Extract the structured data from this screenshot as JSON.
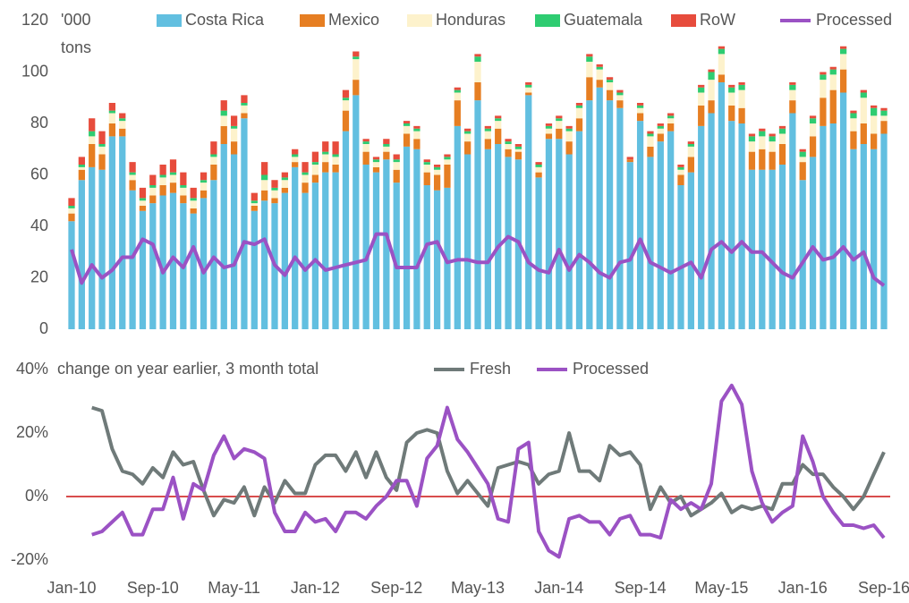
{
  "chart_data": [
    {
      "type": "bar",
      "stacked": true,
      "y_label": [
        "'000",
        "tons"
      ],
      "ylim": [
        0,
        120
      ],
      "yticks": [
        0,
        20,
        40,
        60,
        80,
        100,
        120
      ],
      "series": [
        {
          "name": "Costa Rica",
          "color": "#62bfe0",
          "values": [
            42,
            58,
            63,
            62,
            75,
            75,
            54,
            46,
            49,
            52,
            53,
            49,
            45,
            51,
            58,
            72,
            68,
            82,
            46,
            50,
            49,
            53,
            63,
            53,
            57,
            61,
            61,
            77,
            91,
            64,
            61,
            66,
            57,
            71,
            70,
            56,
            54,
            55,
            79,
            68,
            89,
            70,
            72,
            67,
            66,
            91,
            59,
            74,
            74,
            68,
            77,
            89,
            94,
            89,
            86,
            65,
            81,
            67,
            73,
            77,
            56,
            61,
            79,
            84,
            96,
            81,
            80,
            62,
            62,
            62,
            64,
            84,
            58,
            67,
            79,
            80,
            92,
            70,
            72,
            70,
            76
          ]
        },
        {
          "name": "Mexico",
          "color": "#e67e22",
          "values": [
            3,
            4,
            9,
            6,
            5,
            3,
            4,
            2,
            3,
            4,
            4,
            3,
            2,
            3,
            6,
            7,
            5,
            2,
            2,
            4,
            2,
            2,
            2,
            4,
            3,
            4,
            3,
            8,
            6,
            5,
            2,
            3,
            5,
            5,
            4,
            5,
            6,
            9,
            10,
            5,
            7,
            4,
            6,
            3,
            3,
            1,
            2,
            2,
            4,
            5,
            5,
            9,
            3,
            4,
            3,
            1,
            3,
            4,
            3,
            3,
            4,
            6,
            8,
            5,
            3,
            6,
            6,
            7,
            8,
            7,
            8,
            5,
            7,
            8,
            11,
            13,
            9,
            7,
            8,
            6,
            5
          ]
        },
        {
          "name": "Honduras",
          "color": "#fdf2cc",
          "values": [
            2,
            1,
            3,
            3,
            4,
            3,
            2,
            2,
            3,
            3,
            3,
            3,
            3,
            3,
            3,
            4,
            5,
            3,
            1,
            4,
            3,
            3,
            2,
            3,
            4,
            3,
            3,
            4,
            8,
            3,
            2,
            2,
            3,
            3,
            3,
            3,
            2,
            2,
            3,
            3,
            8,
            3,
            3,
            2,
            1,
            2,
            2,
            2,
            3,
            4,
            4,
            6,
            4,
            3,
            2,
            0,
            2,
            4,
            2,
            2,
            2,
            4,
            5,
            8,
            8,
            5,
            7,
            4,
            5,
            4,
            4,
            4,
            2,
            5,
            7,
            6,
            6,
            5,
            10,
            7,
            2
          ]
        },
        {
          "name": "Guatemala",
          "color": "#2ecc71",
          "values": [
            1,
            1,
            2,
            1,
            1,
            1,
            1,
            1,
            1,
            1,
            1,
            1,
            1,
            1,
            1,
            2,
            1,
            1,
            1,
            2,
            1,
            1,
            1,
            1,
            1,
            1,
            1,
            1,
            1,
            1,
            1,
            1,
            1,
            1,
            1,
            1,
            1,
            1,
            1,
            1,
            2,
            1,
            1,
            1,
            1,
            1,
            1,
            1,
            1,
            1,
            1,
            2,
            1,
            1,
            1,
            0,
            1,
            1,
            1,
            1,
            1,
            1,
            2,
            3,
            2,
            2,
            2,
            2,
            2,
            2,
            2,
            2,
            2,
            2,
            2,
            2,
            2,
            2,
            2,
            3,
            2
          ]
        },
        {
          "name": "RoW",
          "color": "#e74c3c",
          "values": [
            3,
            3,
            5,
            5,
            3,
            2,
            4,
            4,
            4,
            4,
            5,
            5,
            4,
            3,
            5,
            4,
            4,
            3,
            3,
            5,
            3,
            2,
            2,
            4,
            4,
            4,
            5,
            3,
            2,
            1,
            1,
            2,
            2,
            1,
            1,
            1,
            1,
            1,
            1,
            1,
            1,
            1,
            1,
            1,
            1,
            1,
            1,
            1,
            1,
            1,
            1,
            1,
            1,
            1,
            1,
            1,
            1,
            1,
            1,
            1,
            1,
            1,
            1,
            1,
            1,
            1,
            1,
            1,
            1,
            1,
            1,
            1,
            1,
            1,
            1,
            1,
            1,
            1,
            1,
            1,
            1
          ]
        },
        {
          "name": "Processed",
          "type": "line",
          "color": "#9b52c4",
          "values": [
            31,
            18,
            25,
            20,
            23,
            28,
            28,
            35,
            33,
            22,
            28,
            24,
            32,
            22,
            28,
            24,
            25,
            34,
            33,
            35,
            25,
            21,
            28,
            23,
            27,
            23,
            24,
            25,
            26,
            27,
            37,
            37,
            24,
            24,
            24,
            33,
            34,
            26,
            27,
            27,
            26,
            26,
            32,
            36,
            34,
            26,
            23,
            22,
            31,
            23,
            29,
            26,
            22,
            20,
            26,
            27,
            35,
            26,
            24,
            22,
            24,
            26,
            20,
            31,
            34,
            30,
            34,
            30,
            30,
            26,
            22,
            20,
            26,
            32,
            27,
            28,
            32,
            27,
            30,
            20,
            17
          ]
        }
      ]
    },
    {
      "type": "line",
      "y_label": "change on year earlier, 3 month total",
      "categories": [
        "Jan-10",
        null,
        null,
        null,
        null,
        null,
        null,
        null,
        "Sep-10",
        null,
        null,
        null,
        null,
        null,
        null,
        null,
        "May-11",
        null,
        null,
        null,
        null,
        null,
        null,
        null,
        "Jan-12",
        null,
        null,
        null,
        null,
        null,
        null,
        null,
        "Sep-12",
        null,
        null,
        null,
        null,
        null,
        null,
        null,
        "May-13",
        null,
        null,
        null,
        null,
        null,
        null,
        null,
        "Jan-14",
        null,
        null,
        null,
        null,
        null,
        null,
        null,
        "Sep-14",
        null,
        null,
        null,
        null,
        null,
        null,
        null,
        "May-15",
        null,
        null,
        null,
        null,
        null,
        null,
        null,
        "Jan-16",
        null,
        null,
        null,
        null,
        null,
        null,
        null,
        "Sep-16"
      ],
      "ylim": [
        -20,
        40
      ],
      "yticks": [
        {
          "value": -20,
          "label": "-20%"
        },
        {
          "value": 0,
          "label": "0%"
        },
        {
          "value": 20,
          "label": "20%"
        },
        {
          "value": 40,
          "label": "40%"
        }
      ],
      "zero_line": "#cc1111",
      "series": [
        {
          "name": "Fresh",
          "color": "#6f7a79",
          "values": [
            null,
            null,
            28,
            27,
            15,
            8,
            7,
            4,
            9,
            6,
            14,
            10,
            11,
            2,
            -6,
            -1,
            -2,
            3,
            -6,
            3,
            -2,
            5,
            1,
            1,
            10,
            13,
            13,
            8,
            14,
            6,
            14,
            6,
            2,
            17,
            20,
            21,
            20,
            8,
            1,
            5,
            1,
            -3,
            9,
            10,
            11,
            10,
            4,
            7,
            8,
            20,
            8,
            8,
            5,
            16,
            13,
            14,
            10,
            -4,
            3,
            -2,
            0,
            -6,
            -4,
            -2,
            1,
            -5,
            -3,
            -4,
            -3,
            -4,
            4,
            4,
            10,
            7,
            7,
            3,
            0,
            -4,
            0,
            7,
            14
          ]
        },
        {
          "name": "Processed",
          "color": "#9b52c4",
          "values": [
            null,
            null,
            -12,
            -11,
            -8,
            -5,
            -12,
            -12,
            -4,
            -4,
            6,
            -7,
            4,
            2,
            13,
            19,
            12,
            15,
            14,
            12,
            -5,
            -11,
            -11,
            -5,
            -8,
            -7,
            -11,
            -5,
            -5,
            -7,
            -3,
            0,
            5,
            5,
            -3,
            12,
            16,
            28,
            18,
            14,
            9,
            4,
            -7,
            -8,
            15,
            17,
            -11,
            -17,
            -19,
            -7,
            -6,
            -8,
            -8,
            -12,
            -7,
            -6,
            -12,
            -12,
            -13,
            -1,
            -4,
            -2,
            -4,
            4,
            30,
            35,
            29,
            8,
            -2,
            -8,
            -5,
            -3,
            19,
            11,
            0,
            -5,
            -9,
            -9,
            -10,
            -9,
            -13
          ]
        }
      ]
    }
  ]
}
